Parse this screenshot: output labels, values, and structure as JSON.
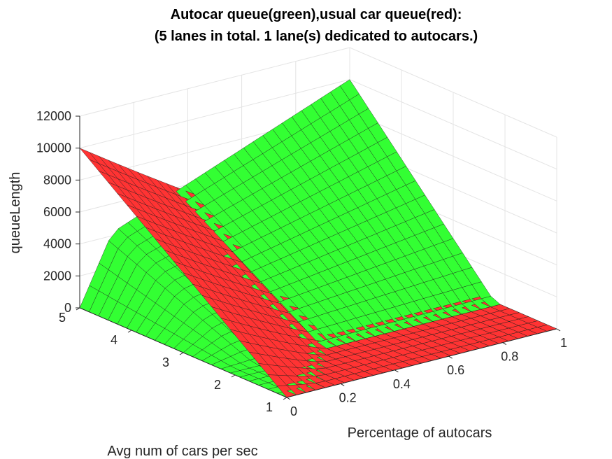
{
  "chart_data": {
    "type": "surface",
    "title_line1": "Autocar queue(green),usual car queue(red):",
    "title_line2": "(5 lanes in total. 1 lane(s) dedicated to autocars.)",
    "xlabel": "Percentage of autocars",
    "ylabel": "Avg num of cars per sec",
    "zlabel": "queueLength",
    "xlim": [
      0,
      1
    ],
    "ylim": [
      1,
      5
    ],
    "zlim": [
      0,
      12000
    ],
    "x_ticks": [
      "0",
      "0.2",
      "0.4",
      "0.6",
      "0.8",
      "1"
    ],
    "y_ticks": [
      "1",
      "2",
      "3",
      "4",
      "5"
    ],
    "z_ticks": [
      "0",
      "2000",
      "4000",
      "6000",
      "8000",
      "10000",
      "12000"
    ],
    "grid": true,
    "series": [
      {
        "name": "Autocar queue",
        "color": "#33ff33",
        "corner_values": {
          "x0_y1": 0,
          "x1_y1": 0,
          "x0_y5": 0,
          "x1_y5": 10000
        },
        "ridge_peak_at_y5": 4200
      },
      {
        "name": "usual car queue",
        "color": "#ff3333",
        "corner_values": {
          "x0_y1": 0,
          "x1_y1": 0,
          "x0_y5": 10000,
          "x1_y5": 0
        }
      }
    ]
  }
}
